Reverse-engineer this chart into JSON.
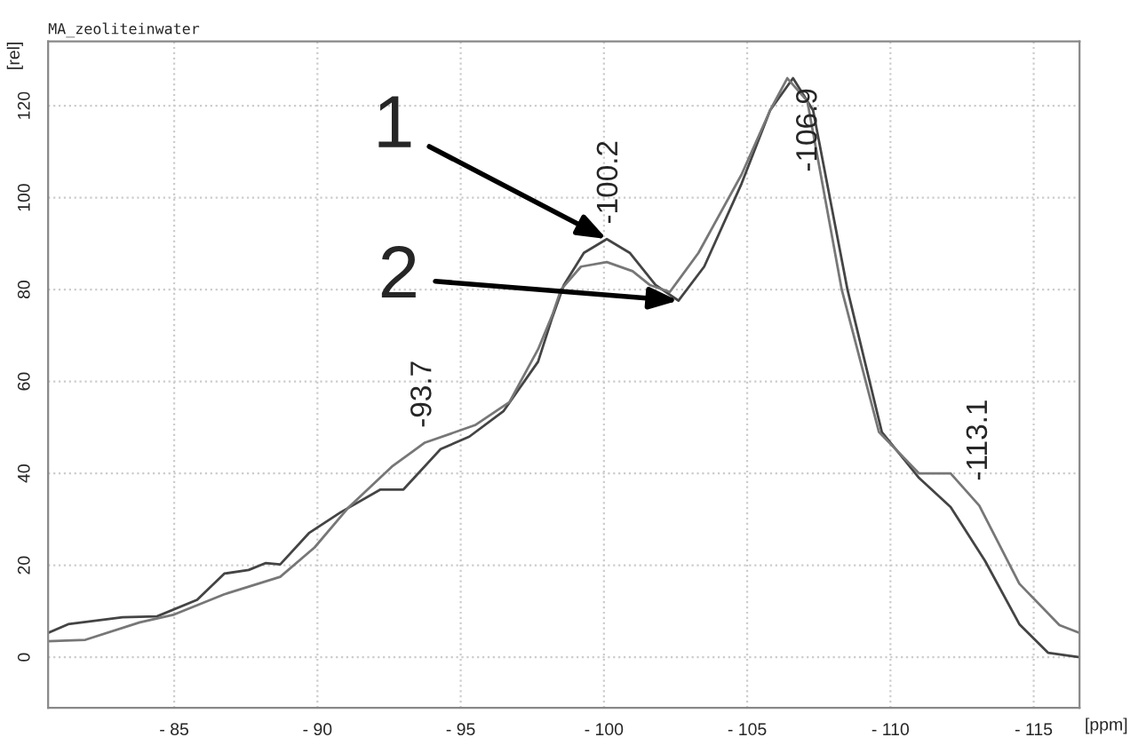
{
  "chart_data": {
    "type": "line",
    "title": "MA_zeoliteinwater",
    "xlabel": "[ppm]",
    "ylabel": "[rel]",
    "xlim": [
      -80.6,
      -116.6
    ],
    "ylim": [
      -11,
      134
    ],
    "xticks": [
      {
        "value": -85,
        "label": "- 85"
      },
      {
        "value": -90,
        "label": "- 90"
      },
      {
        "value": -95,
        "label": "- 95"
      },
      {
        "value": -100,
        "label": "- 100"
      },
      {
        "value": -105,
        "label": "- 105"
      },
      {
        "value": -110,
        "label": "- 110"
      },
      {
        "value": -115,
        "label": "- 115"
      }
    ],
    "yticks": [
      0,
      20,
      40,
      60,
      80,
      100,
      120
    ],
    "grid": true,
    "marker": "none",
    "line_style": "solid",
    "series": [
      {
        "color": "#444444",
        "x": [
          -80.6,
          -81.3,
          -83.2,
          -84.4,
          -85.8,
          -86.75,
          -87.6,
          -88.2,
          -88.7,
          -89.7,
          -90.8,
          -92.2,
          -93.0,
          -94.3,
          -95.3,
          -96.5,
          -97.7,
          -98.2,
          -98.6,
          -99.3,
          -100.1,
          -100.9,
          -101.8,
          -102.6,
          -103.5,
          -104.8,
          -105.8,
          -106.6,
          -107.3,
          -108.5,
          -109.7,
          -111.0,
          -112.1,
          -113.3,
          -114.5,
          -115.5,
          -116.6
        ],
        "values": [
          5.3,
          7.2,
          8.7,
          8.9,
          12.5,
          18.2,
          19,
          20.5,
          20.2,
          27,
          31.5,
          36.5,
          36.5,
          45.3,
          48,
          53.6,
          64.3,
          74,
          81,
          88,
          91,
          88,
          81,
          77.6,
          85,
          103,
          119,
          126,
          119,
          80,
          49,
          39,
          32.7,
          21,
          7.2,
          1,
          0
        ]
      },
      {
        "color": "#777777",
        "x": [
          -80.6,
          -81.9,
          -83.8,
          -85.0,
          -86.75,
          -88.7,
          -89.9,
          -91.1,
          -92.6,
          -93.75,
          -95.5,
          -96.7,
          -97.7,
          -98.2,
          -98.5,
          -99.2,
          -100.1,
          -101.0,
          -101.6,
          -102.3,
          -103.3,
          -104.8,
          -105.8,
          -106.4,
          -107.1,
          -108.3,
          -109.6,
          -111.0,
          -112.1,
          -113.1,
          -114.5,
          -115.9,
          -116.6
        ],
        "values": [
          3.5,
          3.8,
          7.6,
          9.3,
          13.7,
          17.5,
          23.9,
          32.7,
          41.5,
          46.7,
          50.5,
          55.5,
          67,
          74.5,
          80,
          85,
          86,
          84,
          81,
          79.5,
          88,
          105,
          119,
          126,
          121,
          80,
          49,
          40,
          40,
          33,
          16,
          7,
          5.3
        ]
      }
    ],
    "annotations": [
      {
        "text": "-100.2",
        "x": -100.2,
        "y": 91
      },
      {
        "text": "-106.9",
        "x": -106.9,
        "y": 126
      },
      {
        "text": "-93.7",
        "x": -93.7,
        "y": 46.7
      },
      {
        "text": "-113.1",
        "x": -113.1,
        "y": 33
      },
      {
        "text": "1",
        "x": -100.1,
        "y": 91
      },
      {
        "text": "2",
        "x": -102.6,
        "y": 77.6
      }
    ]
  }
}
